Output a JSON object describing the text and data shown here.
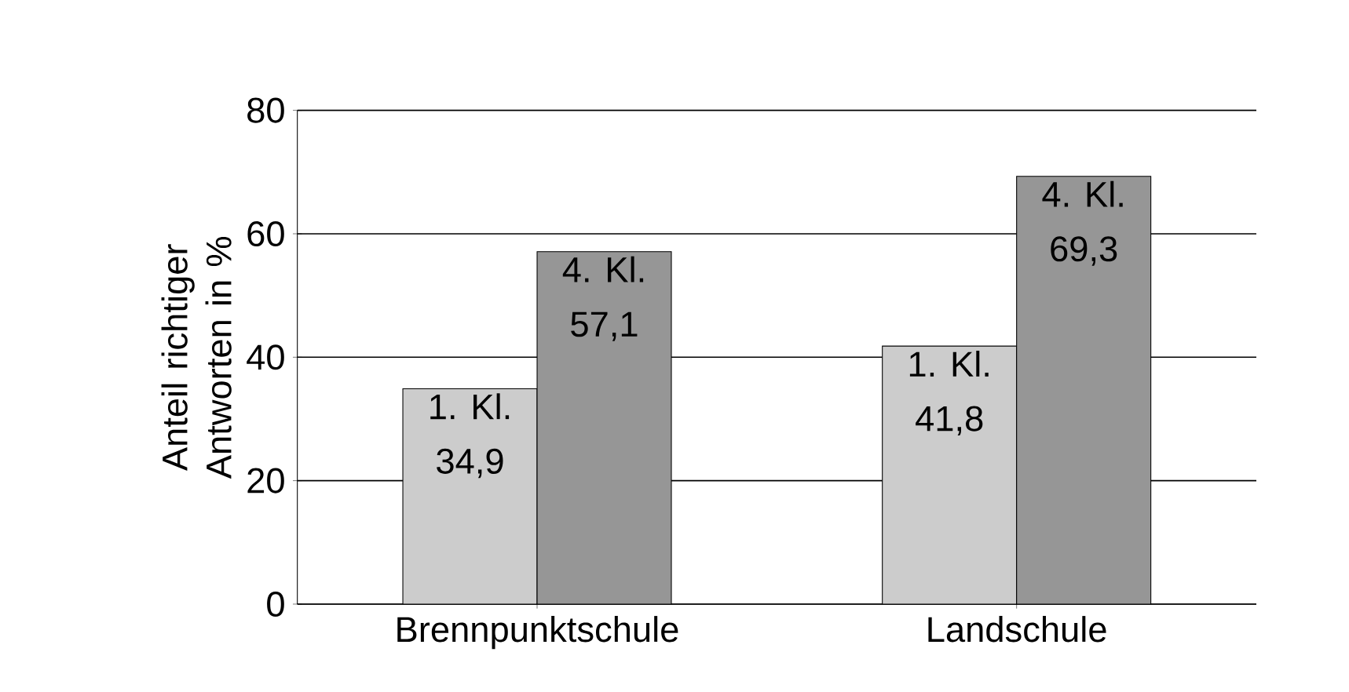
{
  "chart_data": {
    "type": "bar",
    "ylabel": "Anteil richtiger Antworten in %",
    "categories": [
      "Brennpunktschule",
      "Landschule"
    ],
    "series": [
      {
        "name": "1. Kl.",
        "color": "#cccccc",
        "values": [
          34.9,
          41.8
        ],
        "value_labels": [
          "34,9",
          "41,8"
        ]
      },
      {
        "name": "4. Kl.",
        "color": "#969696",
        "values": [
          57.1,
          69.3
        ],
        "value_labels": [
          "57,1",
          "69,3"
        ]
      }
    ],
    "ylim": [
      0,
      80
    ],
    "yticks": [
      0,
      20,
      40,
      60,
      80
    ],
    "grid": "y"
  }
}
